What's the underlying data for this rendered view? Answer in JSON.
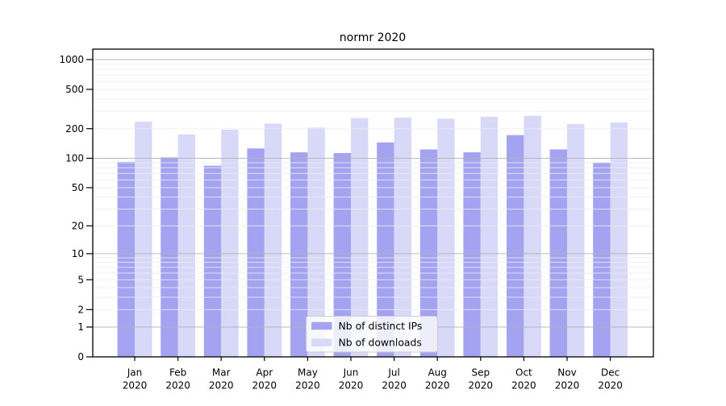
{
  "chart_data": {
    "type": "bar",
    "title": "normr 2020",
    "categories": [
      "Jan",
      "Feb",
      "Mar",
      "Apr",
      "May",
      "Jun",
      "Jul",
      "Aug",
      "Sep",
      "Oct",
      "Nov",
      "Dec"
    ],
    "x_tick_second_line": "2020",
    "series": [
      {
        "name": "Nb of distinct IPs",
        "color": "#a3a3f1",
        "values": [
          92,
          102,
          84,
          126,
          115,
          113,
          145,
          123,
          115,
          172,
          123,
          91
        ]
      },
      {
        "name": "Nb of downloads",
        "color": "#d8d8f8",
        "values": [
          235,
          175,
          195,
          225,
          205,
          256,
          259,
          252,
          264,
          270,
          223,
          231
        ]
      }
    ],
    "xlabel": "",
    "ylabel": "",
    "yscale": "log10(1+x)",
    "yticks": [
      0,
      1,
      2,
      5,
      10,
      20,
      50,
      100,
      200,
      500,
      1000
    ],
    "ylim": [
      0,
      1276
    ],
    "grid": {
      "major_at": [
        1,
        10,
        100,
        1000
      ],
      "minor_rule": "2-9 per decade (2-9, 20-90, 200-900)",
      "major_color": "#b3b3b3",
      "minor_color": "#ededed",
      "drawn_on_top_of_bars": true
    },
    "legend": {
      "position": "inside-lower-left-of-center",
      "background": "rgba(255,255,255,0.8)",
      "border_color": "#cccccc"
    }
  }
}
